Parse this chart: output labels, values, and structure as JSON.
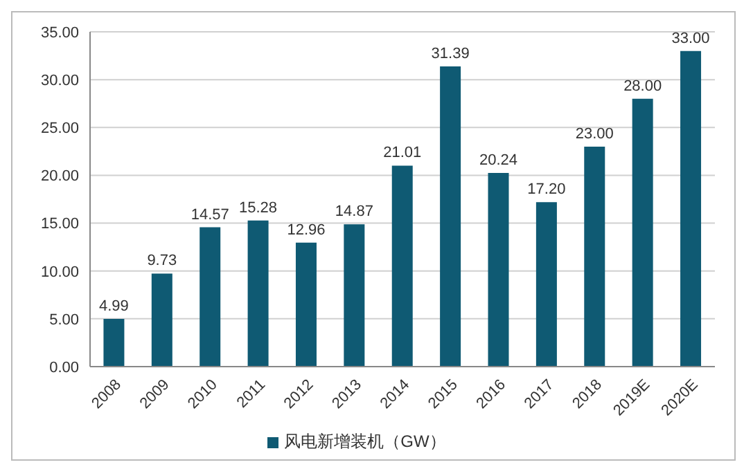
{
  "chart_data": {
    "type": "bar",
    "categories": [
      "2008",
      "2009",
      "2010",
      "2011",
      "2012",
      "2013",
      "2014",
      "2015",
      "2016",
      "2017",
      "2018",
      "2019E",
      "2020E"
    ],
    "series": [
      {
        "name": "风电新增装机（GW）",
        "color": "#0f5a73",
        "values": [
          4.99,
          9.73,
          14.57,
          15.28,
          12.96,
          14.87,
          21.01,
          31.39,
          20.24,
          17.2,
          23,
          28,
          33
        ],
        "value_labels": [
          "4.99",
          "9.73",
          "14.57",
          "15.28",
          "12.96",
          "14.87",
          "21.01",
          "31.39",
          "20.24",
          "17.20",
          "23.00",
          "28.00",
          "33.00"
        ]
      }
    ],
    "ylim": [
      0,
      35
    ],
    "yticks": [
      {
        "value": 0,
        "label": "0.00"
      },
      {
        "value": 5,
        "label": "5.00"
      },
      {
        "value": 10,
        "label": "10.00"
      },
      {
        "value": 15,
        "label": "15.00"
      },
      {
        "value": 20,
        "label": "20.00"
      },
      {
        "value": 25,
        "label": "25.00"
      },
      {
        "value": 30,
        "label": "30.00"
      },
      {
        "value": 35,
        "label": "35.00"
      }
    ],
    "grid": "y",
    "legend": "bottom"
  }
}
